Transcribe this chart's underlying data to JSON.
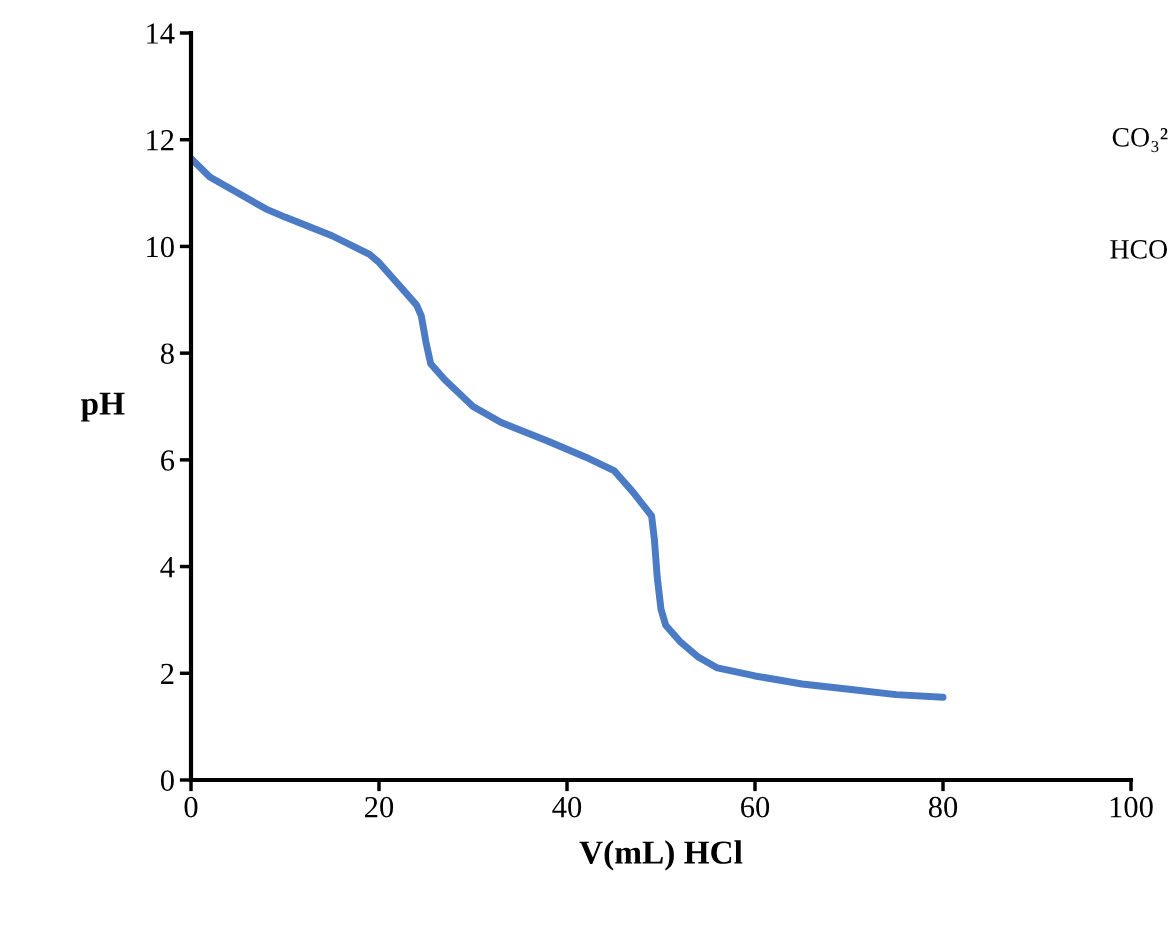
{
  "chart_data": {
    "type": "line",
    "xlabel": "V(mL) HCl",
    "ylabel": "pH",
    "xlim": [
      0,
      100
    ],
    "xticks": [
      0,
      20,
      40,
      60,
      80,
      100
    ],
    "ylim": [
      0,
      14
    ],
    "yticks": [
      0,
      2,
      4,
      6,
      8,
      10,
      12,
      14
    ],
    "grid": false,
    "legend": false,
    "marker": "none",
    "line_style": "solid",
    "annotations": [
      "CO₃²",
      "HCO"
    ],
    "series": [
      {
        "color": "#4a7bc4",
        "x": [
          0,
          2,
          5,
          8,
          10,
          15,
          19,
          20,
          22,
          24,
          24.5,
          25,
          25.5,
          27,
          30,
          33,
          38,
          42,
          45,
          47,
          49,
          49.3,
          49.6,
          50,
          50.5,
          52,
          54,
          56,
          60,
          65,
          70,
          75,
          80
        ],
        "values": [
          11.65,
          11.3,
          11.0,
          10.7,
          10.55,
          10.2,
          9.85,
          9.7,
          9.3,
          8.9,
          8.7,
          8.2,
          7.8,
          7.5,
          7.0,
          6.7,
          6.35,
          6.05,
          5.8,
          5.4,
          4.95,
          4.5,
          3.8,
          3.2,
          2.9,
          2.6,
          2.3,
          2.1,
          1.95,
          1.8,
          1.7,
          1.6,
          1.55
        ]
      }
    ]
  }
}
